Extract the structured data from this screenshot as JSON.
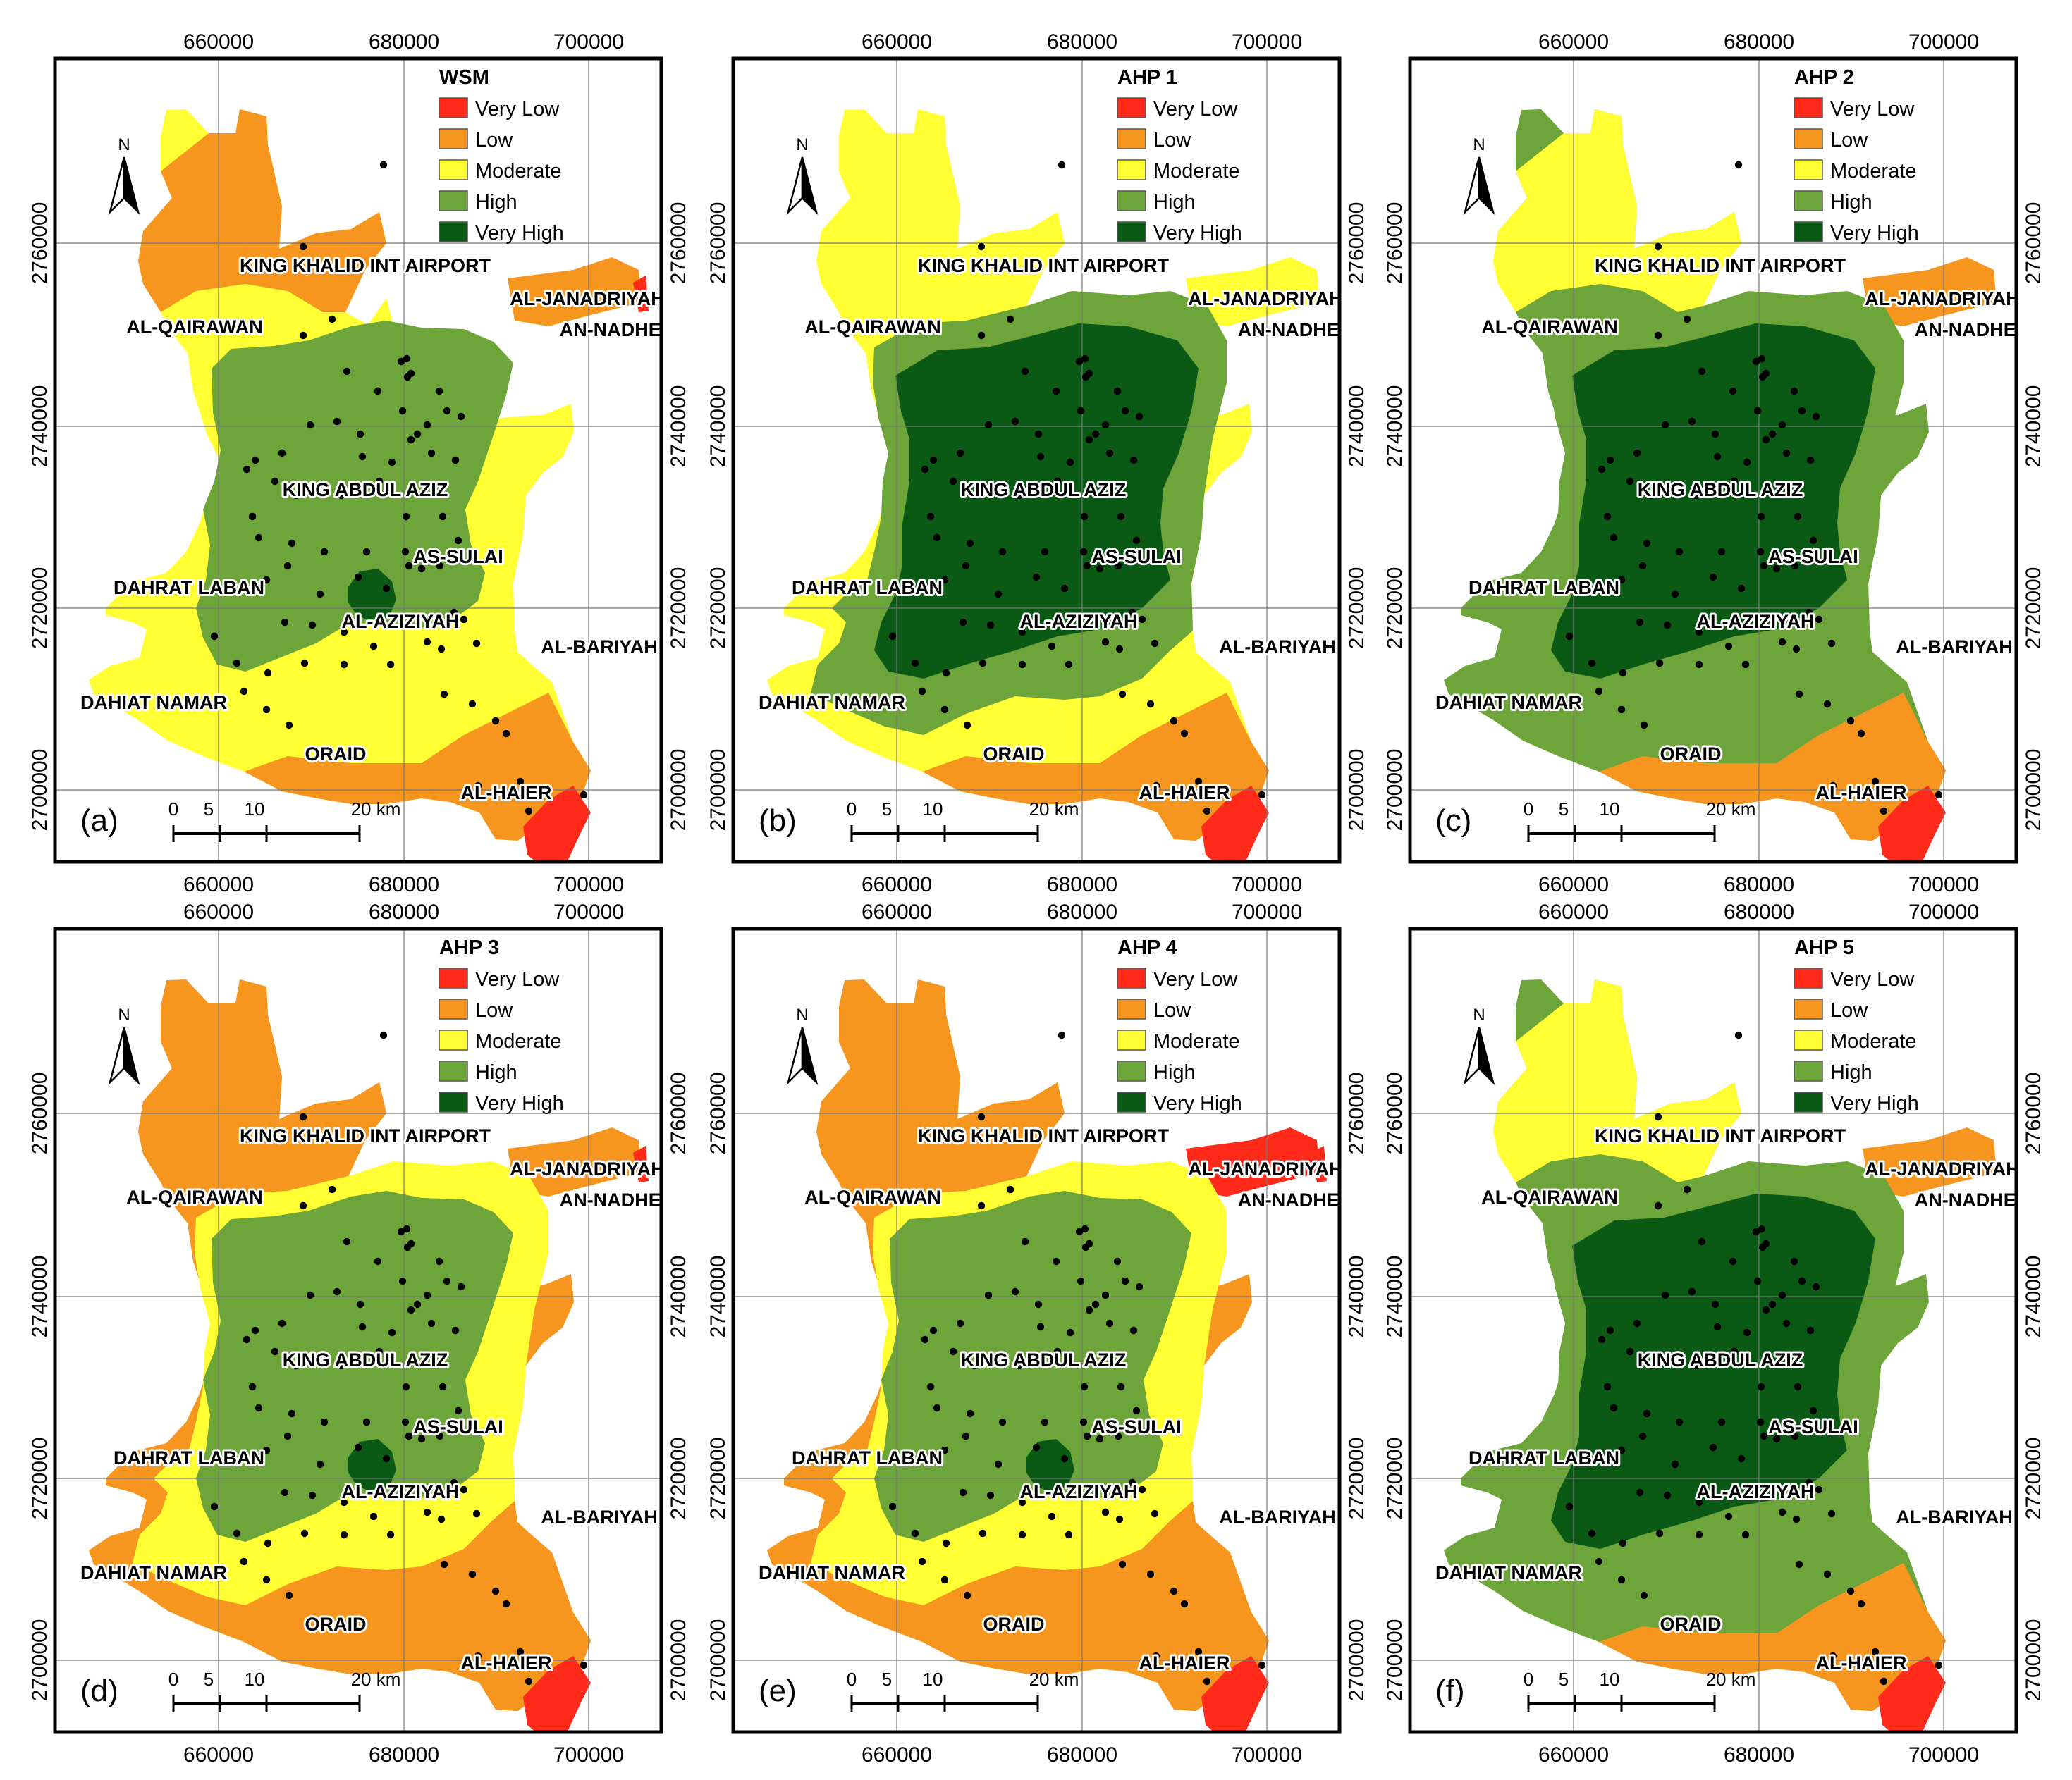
{
  "figure": {
    "x_ticks": [
      "660000",
      "680000",
      "700000"
    ],
    "y_ticks": [
      "2700000",
      "2720000",
      "2740000",
      "2760000"
    ],
    "north_label": "N",
    "scale_labels": [
      "0",
      "5",
      "10",
      "20 km"
    ],
    "legend_items": [
      {
        "label": "Very Low",
        "color": "#ff2a1a"
      },
      {
        "label": "Low",
        "color": "#f6961f"
      },
      {
        "label": "Moderate",
        "color": "#ffff33"
      },
      {
        "label": "High",
        "color": "#6ea53a"
      },
      {
        "label": "Very High",
        "color": "#0a5a16"
      }
    ],
    "place_labels": [
      "KING KHALID INT AIRPORT",
      "AL-JANADRIYAH",
      "AN-NADHEEM",
      "AL-QAIRAWAN",
      "KING ABDUL AZIZ",
      "AS-SULAI",
      "DAHRAT LABAN",
      "AL-AZIZIYAH",
      "AL-BARIYAH",
      "DAHIAT NAMAR",
      "ORAID",
      "AL-HAIER"
    ]
  },
  "panels": [
    {
      "letter": "(a)",
      "title": "WSM"
    },
    {
      "letter": "(b)",
      "title": "AHP 1"
    },
    {
      "letter": "(c)",
      "title": "AHP 2"
    },
    {
      "letter": "(d)",
      "title": "AHP 3"
    },
    {
      "letter": "(e)",
      "title": "AHP 4"
    },
    {
      "letter": "(f)",
      "title": "AHP 5"
    }
  ]
}
